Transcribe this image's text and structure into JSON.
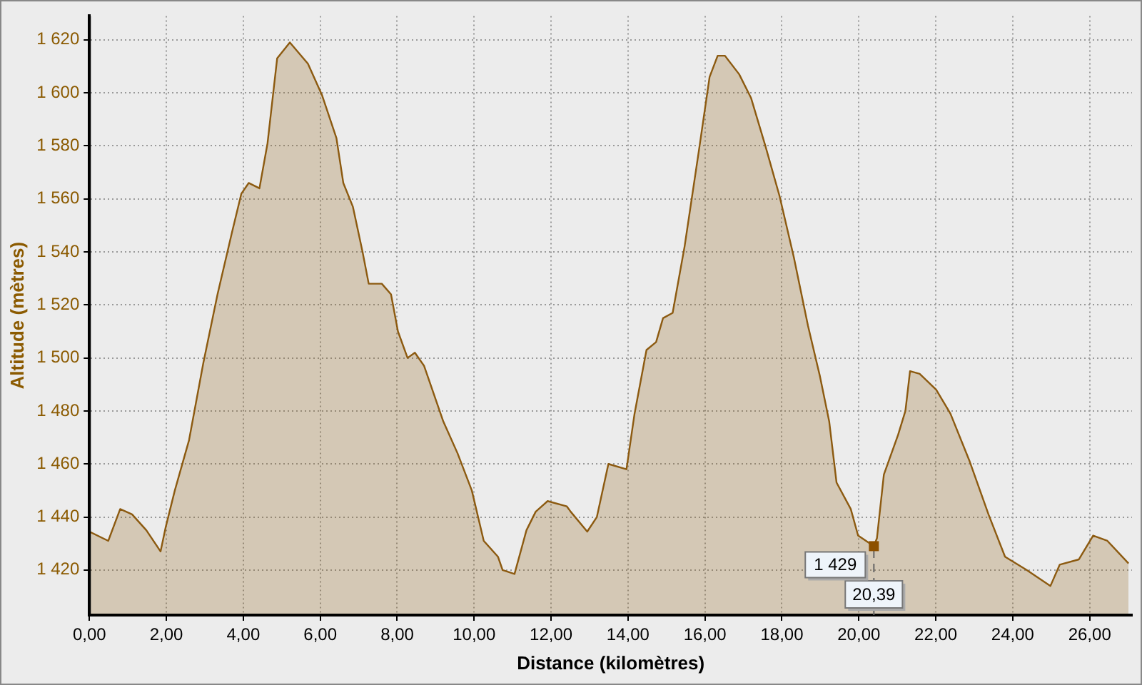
{
  "chart_data": {
    "type": "area",
    "xlabel": "Distance (kilomètres)",
    "ylabel": "Altitude (mètres)",
    "x": [
      0,
      0.49,
      0.8,
      1.11,
      1.48,
      1.85,
      1.98,
      2.22,
      2.59,
      2.96,
      3.33,
      3.7,
      3.95,
      4.14,
      4.42,
      4.63,
      4.88,
      5.21,
      5.68,
      6.05,
      6.42,
      6.6,
      6.85,
      7.1,
      7.26,
      7.6,
      7.84,
      8.02,
      8.27,
      8.46,
      8.7,
      9.2,
      9.57,
      9.94,
      10.25,
      10.62,
      10.74,
      11.05,
      11.36,
      11.6,
      11.91,
      12.41,
      12.51,
      12.94,
      13.19,
      13.49,
      13.96,
      14.17,
      14.48,
      14.73,
      14.91,
      15.16,
      15.47,
      15.84,
      16.12,
      16.33,
      16.52,
      16.89,
      17.2,
      17.57,
      17.94,
      18.31,
      18.68,
      18.99,
      19.23,
      19.42,
      19.79,
      19.98,
      20.39,
      20.47,
      20.65,
      21.02,
      21.21,
      21.33,
      21.58,
      22.01,
      22.38,
      22.88,
      23.37,
      23.8,
      24.36,
      24.98,
      25.22,
      25.72,
      26.09,
      26.46,
      27.01
    ],
    "series": [
      {
        "color": "#8c5a10",
        "values": [
          1434.5,
          1431,
          1443,
          1441,
          1435,
          1427,
          1436,
          1450,
          1469,
          1498,
          1524,
          1547,
          1562,
          1566,
          1564,
          1581,
          1613,
          1619,
          1611,
          1599,
          1583,
          1566,
          1557,
          1540,
          1528,
          1528,
          1524,
          1510,
          1500,
          1502,
          1497,
          1476,
          1464,
          1450,
          1431,
          1425,
          1420,
          1418.5,
          1435,
          1442,
          1446,
          1444,
          1442,
          1434.5,
          1440,
          1460,
          1458,
          1479,
          1503,
          1506,
          1515,
          1517,
          1542,
          1578,
          1606,
          1614,
          1614,
          1607,
          1598,
          1580,
          1561,
          1538,
          1512,
          1493,
          1476,
          1453,
          1443,
          1433,
          1429,
          1432,
          1456,
          1471,
          1480,
          1495,
          1494,
          1488,
          1479,
          1461,
          1441,
          1425,
          1420,
          1414,
          1422,
          1424,
          1433,
          1431,
          1422.5
        ]
      }
    ],
    "xlim": [
      0,
      27.1
    ],
    "ylim": [
      1403,
      1629
    ],
    "xticks": [
      {
        "value": 0,
        "label": "0,00"
      },
      {
        "value": 2,
        "label": "2,00"
      },
      {
        "value": 4,
        "label": "4,00"
      },
      {
        "value": 6,
        "label": "6,00"
      },
      {
        "value": 8,
        "label": "8,00"
      },
      {
        "value": 10,
        "label": "10,00"
      },
      {
        "value": 12,
        "label": "12,00"
      },
      {
        "value": 14,
        "label": "14,00"
      },
      {
        "value": 16,
        "label": "16,00"
      },
      {
        "value": 18,
        "label": "18,00"
      },
      {
        "value": 20,
        "label": "20,00"
      },
      {
        "value": 22,
        "label": "22,00"
      },
      {
        "value": 24,
        "label": "24,00"
      },
      {
        "value": 26,
        "label": "26,00"
      }
    ],
    "yticks": [
      {
        "value": 1420,
        "label": "1 420"
      },
      {
        "value": 1440,
        "label": "1 440"
      },
      {
        "value": 1460,
        "label": "1 460"
      },
      {
        "value": 1480,
        "label": "1 480"
      },
      {
        "value": 1500,
        "label": "1 500"
      },
      {
        "value": 1520,
        "label": "1 520"
      },
      {
        "value": 1540,
        "label": "1 540"
      },
      {
        "value": 1560,
        "label": "1 560"
      },
      {
        "value": 1580,
        "label": "1 580"
      },
      {
        "value": 1600,
        "label": "1 600"
      },
      {
        "value": 1620,
        "label": "1 620"
      }
    ],
    "grid": true,
    "marker": "none",
    "annotations": [
      {
        "text": "1 429",
        "x": 20.39,
        "y": 1429
      }
    ],
    "ref_lines": [
      {
        "axis": "x",
        "value": 20.39,
        "label": "20,39",
        "line_style": "dashed"
      }
    ]
  }
}
